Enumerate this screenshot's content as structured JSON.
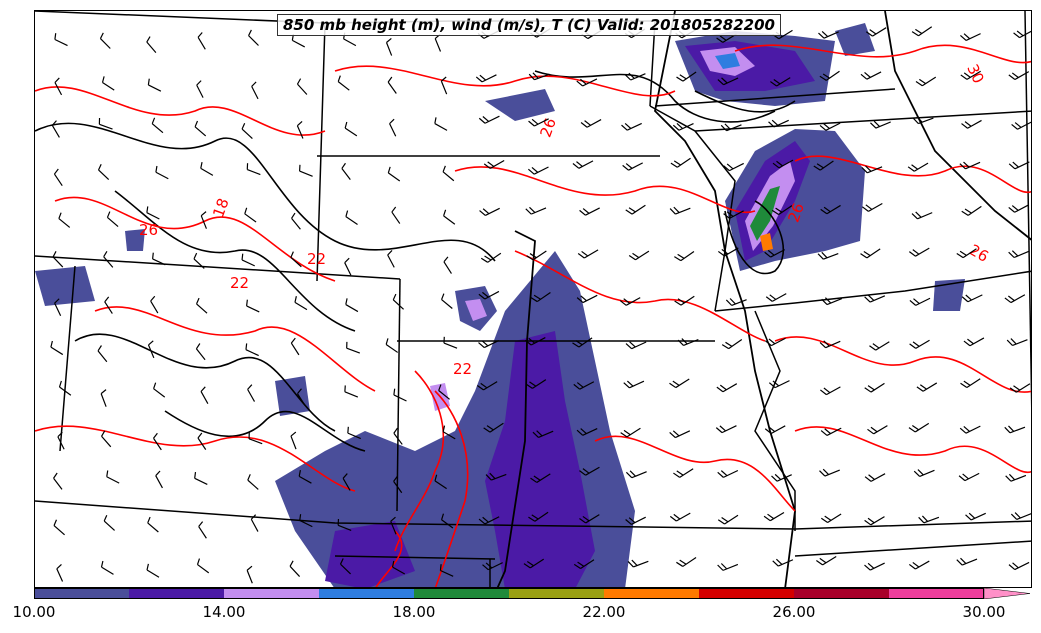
{
  "title": "850 mb height (m), wind (m/s), T (C) Valid: 201805282200",
  "colorbar": {
    "min": 10.0,
    "max": 31.0,
    "tick_labels": [
      "10.00",
      "14.00",
      "18.00",
      "22.00",
      "26.00",
      "30.00"
    ],
    "tick_values": [
      10,
      14,
      18,
      22,
      26,
      30
    ],
    "bins": [
      {
        "from": 10,
        "to": 12,
        "color": "#4a4e9a"
      },
      {
        "from": 12,
        "to": 14,
        "color": "#4b1aa6"
      },
      {
        "from": 14,
        "to": 16,
        "color": "#c38ef0"
      },
      {
        "from": 16,
        "to": 18,
        "color": "#2e7de0"
      },
      {
        "from": 18,
        "to": 20,
        "color": "#1f8a3a"
      },
      {
        "from": 20,
        "to": 22,
        "color": "#9aa012"
      },
      {
        "from": 22,
        "to": 24,
        "color": "#ff7a00"
      },
      {
        "from": 24,
        "to": 26,
        "color": "#d40000"
      },
      {
        "from": 26,
        "to": 28,
        "color": "#a8002a"
      },
      {
        "from": 28,
        "to": 30,
        "color": "#ee3d9c"
      },
      {
        "from": 30,
        "to": 31,
        "color": "#ff90c8"
      }
    ]
  },
  "temperature_contour_labels": [
    "26",
    "22",
    "18",
    "22",
    "22",
    "26",
    "26",
    "30"
  ],
  "colors": {
    "temperature_contour": "#ff0000",
    "height_contour": "#000000",
    "borders": "#000000",
    "wind_barb": "#000000"
  },
  "icons": [
    "wind-barb-icon"
  ]
}
